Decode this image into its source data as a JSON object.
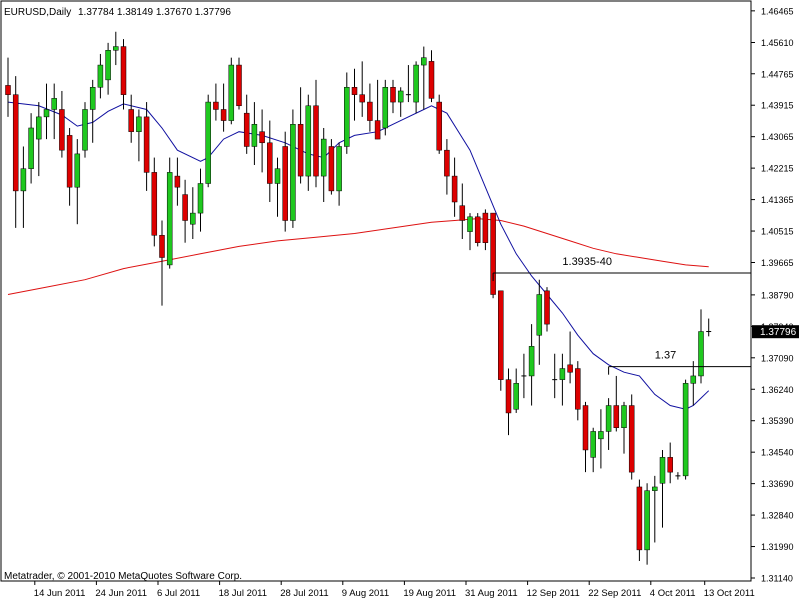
{
  "header": {
    "symbol_label": "EURUSD,Daily",
    "ohlc_text": "1.37784 1.38149 1.37670 1.37796"
  },
  "footer": {
    "copyright": "Metatrader, © 2001-2010 MetaQuotes Software Corp."
  },
  "colors": {
    "background": "#ffffff",
    "up_candle": "#1fc81f",
    "down_candle": "#dd0000",
    "wick": "#000000",
    "ma_fast": "#1010a0",
    "ma_slow": "#dd1111",
    "frame": "#000000",
    "price_tag_bg": "#000000",
    "price_tag_text": "#ffffff"
  },
  "chart_data": {
    "type": "candlestick",
    "instrument": "EURUSD",
    "timeframe": "Daily",
    "ylim": [
      1.3114,
      1.4665
    ],
    "y_ticks": [
      "1.46465",
      "1.45610",
      "1.44765",
      "1.43915",
      "1.43065",
      "1.42215",
      "1.41365",
      "1.40515",
      "1.39665",
      "1.38790",
      "1.37940",
      "1.37090",
      "1.36240",
      "1.35390",
      "1.34540",
      "1.33690",
      "1.32840",
      "1.31990",
      "1.31140"
    ],
    "x_tick_labels": [
      {
        "label": "14 Jun 2011",
        "bar": 4
      },
      {
        "label": "24 Jun 2011",
        "bar": 12
      },
      {
        "label": "6 Jul 2011",
        "bar": 20
      },
      {
        "label": "18 Jul 2011",
        "bar": 28
      },
      {
        "label": "28 Jul 2011",
        "bar": 36
      },
      {
        "label": "9 Aug 2011",
        "bar": 44
      },
      {
        "label": "19 Aug 2011",
        "bar": 52
      },
      {
        "label": "31 Aug 2011",
        "bar": 60
      },
      {
        "label": "12 Sep 2011",
        "bar": 68
      },
      {
        "label": "22 Sep 2011",
        "bar": 76
      },
      {
        "label": "4 Oct 2011",
        "bar": 84
      },
      {
        "label": "13 Oct 2011",
        "bar": 91
      }
    ],
    "candles": [
      {
        "o": 1.4445,
        "h": 1.452,
        "l": 1.436,
        "c": 1.442
      },
      {
        "o": 1.442,
        "h": 1.447,
        "l": 1.406,
        "c": 1.416
      },
      {
        "o": 1.416,
        "h": 1.428,
        "l": 1.406,
        "c": 1.422
      },
      {
        "o": 1.422,
        "h": 1.437,
        "l": 1.418,
        "c": 1.433
      },
      {
        "o": 1.43,
        "h": 1.44,
        "l": 1.42,
        "c": 1.436
      },
      {
        "o": 1.436,
        "h": 1.445,
        "l": 1.43,
        "c": 1.438
      },
      {
        "o": 1.438,
        "h": 1.445,
        "l": 1.43,
        "c": 1.441
      },
      {
        "o": 1.438,
        "h": 1.443,
        "l": 1.425,
        "c": 1.427
      },
      {
        "o": 1.431,
        "h": 1.433,
        "l": 1.412,
        "c": 1.417
      },
      {
        "o": 1.417,
        "h": 1.43,
        "l": 1.407,
        "c": 1.426
      },
      {
        "o": 1.427,
        "h": 1.44,
        "l": 1.425,
        "c": 1.438
      },
      {
        "o": 1.438,
        "h": 1.446,
        "l": 1.429,
        "c": 1.444
      },
      {
        "o": 1.444,
        "h": 1.453,
        "l": 1.441,
        "c": 1.45
      },
      {
        "o": 1.446,
        "h": 1.456,
        "l": 1.442,
        "c": 1.454
      },
      {
        "o": 1.454,
        "h": 1.459,
        "l": 1.45,
        "c": 1.455
      },
      {
        "o": 1.455,
        "h": 1.457,
        "l": 1.438,
        "c": 1.442
      },
      {
        "o": 1.438,
        "h": 1.442,
        "l": 1.429,
        "c": 1.432
      },
      {
        "o": 1.432,
        "h": 1.438,
        "l": 1.424,
        "c": 1.436
      },
      {
        "o": 1.436,
        "h": 1.44,
        "l": 1.416,
        "c": 1.421
      },
      {
        "o": 1.421,
        "h": 1.425,
        "l": 1.401,
        "c": 1.404
      },
      {
        "o": 1.404,
        "h": 1.408,
        "l": 1.385,
        "c": 1.398
      },
      {
        "o": 1.396,
        "h": 1.425,
        "l": 1.395,
        "c": 1.421
      },
      {
        "o": 1.42,
        "h": 1.425,
        "l": 1.412,
        "c": 1.417
      },
      {
        "o": 1.415,
        "h": 1.419,
        "l": 1.402,
        "c": 1.408
      },
      {
        "o": 1.407,
        "h": 1.417,
        "l": 1.403,
        "c": 1.41
      },
      {
        "o": 1.41,
        "h": 1.422,
        "l": 1.405,
        "c": 1.418
      },
      {
        "o": 1.418,
        "h": 1.442,
        "l": 1.417,
        "c": 1.44
      },
      {
        "o": 1.44,
        "h": 1.445,
        "l": 1.435,
        "c": 1.438
      },
      {
        "o": 1.438,
        "h": 1.445,
        "l": 1.432,
        "c": 1.435
      },
      {
        "o": 1.435,
        "h": 1.452,
        "l": 1.434,
        "c": 1.45
      },
      {
        "o": 1.45,
        "h": 1.452,
        "l": 1.438,
        "c": 1.439
      },
      {
        "o": 1.437,
        "h": 1.442,
        "l": 1.426,
        "c": 1.428
      },
      {
        "o": 1.428,
        "h": 1.44,
        "l": 1.423,
        "c": 1.434
      },
      {
        "o": 1.432,
        "h": 1.438,
        "l": 1.421,
        "c": 1.429
      },
      {
        "o": 1.429,
        "h": 1.435,
        "l": 1.413,
        "c": 1.418
      },
      {
        "o": 1.418,
        "h": 1.425,
        "l": 1.409,
        "c": 1.422
      },
      {
        "o": 1.428,
        "h": 1.432,
        "l": 1.405,
        "c": 1.408
      },
      {
        "o": 1.408,
        "h": 1.438,
        "l": 1.406,
        "c": 1.434
      },
      {
        "o": 1.434,
        "h": 1.444,
        "l": 1.418,
        "c": 1.42
      },
      {
        "o": 1.42,
        "h": 1.442,
        "l": 1.416,
        "c": 1.439
      },
      {
        "o": 1.439,
        "h": 1.446,
        "l": 1.417,
        "c": 1.42
      },
      {
        "o": 1.42,
        "h": 1.433,
        "l": 1.413,
        "c": 1.43
      },
      {
        "o": 1.428,
        "h": 1.43,
        "l": 1.415,
        "c": 1.416
      },
      {
        "o": 1.416,
        "h": 1.429,
        "l": 1.412,
        "c": 1.428
      },
      {
        "o": 1.428,
        "h": 1.448,
        "l": 1.426,
        "c": 1.444
      },
      {
        "o": 1.444,
        "h": 1.449,
        "l": 1.435,
        "c": 1.442
      },
      {
        "o": 1.442,
        "h": 1.451,
        "l": 1.436,
        "c": 1.44
      },
      {
        "o": 1.44,
        "h": 1.445,
        "l": 1.432,
        "c": 1.435
      },
      {
        "o": 1.435,
        "h": 1.446,
        "l": 1.43,
        "c": 1.43
      },
      {
        "o": 1.433,
        "h": 1.446,
        "l": 1.431,
        "c": 1.444
      },
      {
        "o": 1.444,
        "h": 1.446,
        "l": 1.437,
        "c": 1.44
      },
      {
        "o": 1.44,
        "h": 1.444,
        "l": 1.436,
        "c": 1.443
      },
      {
        "o": 1.442,
        "h": 1.45,
        "l": 1.44,
        "c": 1.442
      },
      {
        "o": 1.44,
        "h": 1.451,
        "l": 1.437,
        "c": 1.45
      },
      {
        "o": 1.45,
        "h": 1.455,
        "l": 1.438,
        "c": 1.452
      },
      {
        "o": 1.451,
        "h": 1.454,
        "l": 1.44,
        "c": 1.441
      },
      {
        "o": 1.44,
        "h": 1.442,
        "l": 1.426,
        "c": 1.427
      },
      {
        "o": 1.427,
        "h": 1.43,
        "l": 1.415,
        "c": 1.42
      },
      {
        "o": 1.42,
        "h": 1.425,
        "l": 1.409,
        "c": 1.413
      },
      {
        "o": 1.412,
        "h": 1.418,
        "l": 1.403,
        "c": 1.408
      },
      {
        "o": 1.405,
        "h": 1.41,
        "l": 1.4,
        "c": 1.409
      },
      {
        "o": 1.409,
        "h": 1.41,
        "l": 1.401,
        "c": 1.402
      },
      {
        "o": 1.41,
        "h": 1.411,
        "l": 1.4,
        "c": 1.402
      },
      {
        "o": 1.41,
        "h": 1.41,
        "l": 1.387,
        "c": 1.388
      },
      {
        "o": 1.389,
        "h": 1.389,
        "l": 1.362,
        "c": 1.365
      },
      {
        "o": 1.365,
        "h": 1.368,
        "l": 1.35,
        "c": 1.356
      },
      {
        "o": 1.357,
        "h": 1.368,
        "l": 1.356,
        "c": 1.364
      },
      {
        "o": 1.366,
        "h": 1.372,
        "l": 1.36,
        "c": 1.366
      },
      {
        "o": 1.366,
        "h": 1.38,
        "l": 1.358,
        "c": 1.374
      },
      {
        "o": 1.377,
        "h": 1.392,
        "l": 1.369,
        "c": 1.388
      },
      {
        "o": 1.389,
        "h": 1.39,
        "l": 1.378,
        "c": 1.38
      },
      {
        "o": 1.365,
        "h": 1.372,
        "l": 1.36,
        "c": 1.365
      },
      {
        "o": 1.365,
        "h": 1.372,
        "l": 1.358,
        "c": 1.368
      },
      {
        "o": 1.369,
        "h": 1.378,
        "l": 1.364,
        "c": 1.367
      },
      {
        "o": 1.368,
        "h": 1.37,
        "l": 1.354,
        "c": 1.357
      },
      {
        "o": 1.358,
        "h": 1.359,
        "l": 1.34,
        "c": 1.346
      },
      {
        "o": 1.344,
        "h": 1.352,
        "l": 1.34,
        "c": 1.351
      },
      {
        "o": 1.349,
        "h": 1.357,
        "l": 1.341,
        "c": 1.351
      },
      {
        "o": 1.351,
        "h": 1.36,
        "l": 1.346,
        "c": 1.358
      },
      {
        "o": 1.358,
        "h": 1.366,
        "l": 1.351,
        "c": 1.352
      },
      {
        "o": 1.352,
        "h": 1.359,
        "l": 1.345,
        "c": 1.358
      },
      {
        "o": 1.358,
        "h": 1.361,
        "l": 1.338,
        "c": 1.34
      },
      {
        "o": 1.336,
        "h": 1.338,
        "l": 1.316,
        "c": 1.319
      },
      {
        "o": 1.319,
        "h": 1.337,
        "l": 1.315,
        "c": 1.335
      },
      {
        "o": 1.335,
        "h": 1.339,
        "l": 1.321,
        "c": 1.336
      },
      {
        "o": 1.337,
        "h": 1.346,
        "l": 1.325,
        "c": 1.344
      },
      {
        "o": 1.344,
        "h": 1.348,
        "l": 1.337,
        "c": 1.34
      },
      {
        "o": 1.339,
        "h": 1.34,
        "l": 1.338,
        "c": 1.339
      },
      {
        "o": 1.339,
        "h": 1.365,
        "l": 1.338,
        "c": 1.364
      },
      {
        "o": 1.364,
        "h": 1.37,
        "l": 1.358,
        "c": 1.366
      },
      {
        "o": 1.366,
        "h": 1.384,
        "l": 1.364,
        "c": 1.378
      },
      {
        "o": 1.3778,
        "h": 1.3815,
        "l": 1.3767,
        "c": 1.378
      }
    ],
    "moving_averages": [
      {
        "color_key": "ma_fast",
        "points": [
          [
            0,
            1.44
          ],
          [
            4,
            1.439
          ],
          [
            7,
            1.4365
          ],
          [
            9,
            1.4335
          ],
          [
            11,
            1.4345
          ],
          [
            13,
            1.4375
          ],
          [
            15,
            1.4395
          ],
          [
            18,
            1.438
          ],
          [
            20,
            1.433
          ],
          [
            22,
            1.427
          ],
          [
            25,
            1.424
          ],
          [
            26,
            1.425
          ],
          [
            28,
            1.43
          ],
          [
            30,
            1.432
          ],
          [
            33,
            1.431
          ],
          [
            36,
            1.429
          ],
          [
            39,
            1.426
          ],
          [
            41,
            1.425
          ],
          [
            43,
            1.429
          ],
          [
            45,
            1.431
          ],
          [
            48,
            1.432
          ],
          [
            51,
            1.435
          ],
          [
            54,
            1.438
          ],
          [
            55,
            1.439
          ],
          [
            57,
            1.437
          ],
          [
            60,
            1.427
          ],
          [
            62,
            1.417
          ],
          [
            64,
            1.407
          ],
          [
            66,
            1.399
          ],
          [
            68,
            1.393
          ],
          [
            70,
            1.388
          ],
          [
            72,
            1.383
          ],
          [
            74,
            1.377
          ],
          [
            76,
            1.372
          ],
          [
            78,
            1.369
          ],
          [
            80,
            1.367
          ],
          [
            82,
            1.366
          ],
          [
            84,
            1.361
          ],
          [
            86,
            1.358
          ],
          [
            88,
            1.357
          ],
          [
            89,
            1.358
          ],
          [
            90,
            1.36
          ],
          [
            91,
            1.362
          ]
        ]
      },
      {
        "color_key": "ma_slow",
        "points": [
          [
            0,
            1.388
          ],
          [
            5,
            1.39
          ],
          [
            10,
            1.392
          ],
          [
            15,
            1.395
          ],
          [
            20,
            1.397
          ],
          [
            25,
            1.399
          ],
          [
            30,
            1.401
          ],
          [
            35,
            1.4025
          ],
          [
            40,
            1.4035
          ],
          [
            45,
            1.4045
          ],
          [
            50,
            1.406
          ],
          [
            55,
            1.4075
          ],
          [
            58,
            1.408
          ],
          [
            61,
            1.4085
          ],
          [
            64,
            1.408
          ],
          [
            67,
            1.4065
          ],
          [
            70,
            1.4045
          ],
          [
            73,
            1.4025
          ],
          [
            76,
            1.4005
          ],
          [
            79,
            1.399
          ],
          [
            82,
            1.398
          ],
          [
            85,
            1.397
          ],
          [
            88,
            1.396
          ],
          [
            91,
            1.3955
          ]
        ]
      }
    ],
    "annotations": [
      {
        "text": "1.3935-40",
        "price": 1.3938,
        "from_bar": 63,
        "text_bar": 72
      },
      {
        "text": "1.37",
        "price": 1.3685,
        "from_bar": 78,
        "text_bar": 84
      }
    ],
    "last_price": "1.37796"
  }
}
